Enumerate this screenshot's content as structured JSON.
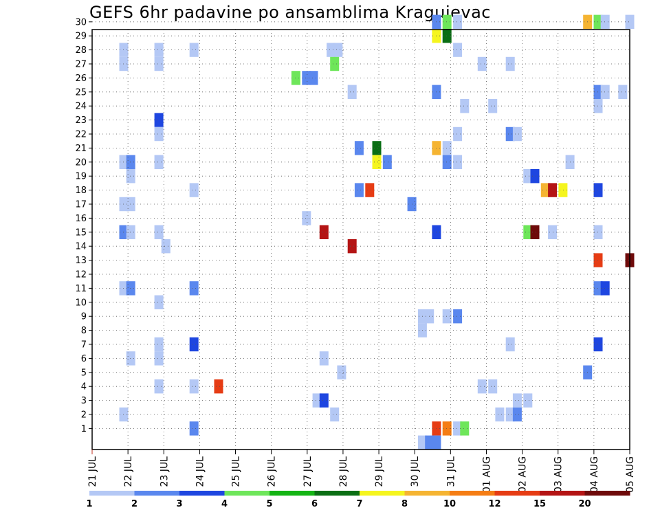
{
  "chart_data": {
    "type": "heatmap",
    "title": "GEFS 6hr padavine po ansamblima Kragujevac",
    "xlabel": "",
    "ylabel": "",
    "y_members": [
      1,
      2,
      3,
      4,
      5,
      6,
      7,
      8,
      9,
      10,
      11,
      12,
      13,
      14,
      15,
      16,
      17,
      18,
      19,
      20,
      21,
      22,
      23,
      24,
      25,
      26,
      27,
      28,
      29,
      30
    ],
    "x_range_days": [
      0,
      15.3
    ],
    "x_ticks": [
      "21 JUL",
      "22 JUL",
      "23 JUL",
      "24 JUL",
      "25 JUL",
      "26 JUL",
      "27 JUL",
      "28 JUL",
      "29 JUL",
      "30 JUL",
      "31 JUL",
      "01 AUG",
      "02 AUG",
      "03 AUG",
      "04 AUG",
      "05 AUG"
    ],
    "grid": true,
    "legend": {
      "placement": "bottom",
      "labels": [
        "1",
        "2",
        "3",
        "4",
        "5",
        "6",
        "7",
        "8",
        "10",
        "12",
        "15",
        "20"
      ],
      "colors": [
        "#b4c8f5",
        "#5a87ee",
        "#1e46e0",
        "#6ee65a",
        "#14b414",
        "#0a6e14",
        "#f5f51e",
        "#f5b432",
        "#f57d14",
        "#e63c14",
        "#b41414",
        "#6e0a0a"
      ]
    },
    "series": [
      {
        "x": 0.9,
        "y": 28,
        "v": 1
      },
      {
        "x": 0.9,
        "y": 27,
        "v": 1
      },
      {
        "x": 1.9,
        "y": 28,
        "v": 1
      },
      {
        "x": 1.9,
        "y": 27,
        "v": 1
      },
      {
        "x": 2.9,
        "y": 28,
        "v": 1
      },
      {
        "x": 1.9,
        "y": 23,
        "v": 3
      },
      {
        "x": 1.9,
        "y": 22,
        "v": 1
      },
      {
        "x": 0.9,
        "y": 20,
        "v": 1
      },
      {
        "x": 1.1,
        "y": 20,
        "v": 2
      },
      {
        "x": 1.1,
        "y": 19,
        "v": 1
      },
      {
        "x": 1.9,
        "y": 20,
        "v": 1
      },
      {
        "x": 0.9,
        "y": 17,
        "v": 1
      },
      {
        "x": 1.1,
        "y": 17,
        "v": 1
      },
      {
        "x": 2.9,
        "y": 18,
        "v": 1
      },
      {
        "x": 0.9,
        "y": 15,
        "v": 2
      },
      {
        "x": 1.1,
        "y": 15,
        "v": 1
      },
      {
        "x": 1.9,
        "y": 15,
        "v": 1
      },
      {
        "x": 2.1,
        "y": 14,
        "v": 1
      },
      {
        "x": 0.9,
        "y": 11,
        "v": 1
      },
      {
        "x": 1.1,
        "y": 11,
        "v": 2
      },
      {
        "x": 2.9,
        "y": 11,
        "v": 2
      },
      {
        "x": 1.9,
        "y": 10,
        "v": 1
      },
      {
        "x": 2.9,
        "y": 7,
        "v": 3
      },
      {
        "x": 1.9,
        "y": 7,
        "v": 1
      },
      {
        "x": 1.1,
        "y": 6,
        "v": 1
      },
      {
        "x": 1.9,
        "y": 6,
        "v": 1
      },
      {
        "x": 1.9,
        "y": 4,
        "v": 1
      },
      {
        "x": 2.9,
        "y": 4,
        "v": 1
      },
      {
        "x": 3.6,
        "y": 4,
        "v": 12
      },
      {
        "x": 0.9,
        "y": 2,
        "v": 1
      },
      {
        "x": 2.9,
        "y": 1,
        "v": 2
      },
      {
        "x": 5.8,
        "y": 26,
        "v": 4
      },
      {
        "x": 6.1,
        "y": 26,
        "v": 2
      },
      {
        "x": 6.3,
        "y": 26,
        "v": 2
      },
      {
        "x": 6.8,
        "y": 28,
        "v": 1
      },
      {
        "x": 7.0,
        "y": 28,
        "v": 1
      },
      {
        "x": 6.9,
        "y": 27,
        "v": 4
      },
      {
        "x": 7.4,
        "y": 25,
        "v": 1
      },
      {
        "x": 7.6,
        "y": 21,
        "v": 2
      },
      {
        "x": 7.6,
        "y": 18,
        "v": 2
      },
      {
        "x": 7.9,
        "y": 18,
        "v": 12
      },
      {
        "x": 6.1,
        "y": 16,
        "v": 1
      },
      {
        "x": 6.6,
        "y": 15,
        "v": 15
      },
      {
        "x": 7.4,
        "y": 14,
        "v": 15
      },
      {
        "x": 6.6,
        "y": 6,
        "v": 1
      },
      {
        "x": 7.1,
        "y": 5,
        "v": 1
      },
      {
        "x": 6.4,
        "y": 3,
        "v": 1
      },
      {
        "x": 6.6,
        "y": 3,
        "v": 3
      },
      {
        "x": 6.9,
        "y": 2,
        "v": 1
      },
      {
        "x": 8.1,
        "y": 21,
        "v": 6
      },
      {
        "x": 8.1,
        "y": 20,
        "v": 7
      },
      {
        "x": 8.4,
        "y": 20,
        "v": 2
      },
      {
        "x": 9.1,
        "y": 17,
        "v": 2
      },
      {
        "x": 9.8,
        "y": 30,
        "v": 2
      },
      {
        "x": 10.1,
        "y": 30,
        "v": 4
      },
      {
        "x": 10.4,
        "y": 30,
        "v": 1
      },
      {
        "x": 9.8,
        "y": 29,
        "v": 7
      },
      {
        "x": 10.1,
        "y": 29,
        "v": 6
      },
      {
        "x": 10.4,
        "y": 28,
        "v": 1
      },
      {
        "x": 9.8,
        "y": 25,
        "v": 2
      },
      {
        "x": 10.6,
        "y": 24,
        "v": 1
      },
      {
        "x": 10.4,
        "y": 22,
        "v": 1
      },
      {
        "x": 9.8,
        "y": 21,
        "v": 8
      },
      {
        "x": 10.1,
        "y": 21,
        "v": 1
      },
      {
        "x": 10.1,
        "y": 20,
        "v": 2
      },
      {
        "x": 10.4,
        "y": 20,
        "v": 1
      },
      {
        "x": 9.8,
        "y": 15,
        "v": 3
      },
      {
        "x": 9.4,
        "y": 9,
        "v": 1
      },
      {
        "x": 9.6,
        "y": 9,
        "v": 1
      },
      {
        "x": 9.4,
        "y": 8,
        "v": 1
      },
      {
        "x": 10.1,
        "y": 9,
        "v": 1
      },
      {
        "x": 10.4,
        "y": 9,
        "v": 2
      },
      {
        "x": 9.8,
        "y": 1,
        "v": 12
      },
      {
        "x": 10.1,
        "y": 1,
        "v": 10
      },
      {
        "x": 10.4,
        "y": 1,
        "v": 1
      },
      {
        "x": 10.6,
        "y": 1,
        "v": 4
      },
      {
        "x": 9.4,
        "y": 0,
        "v": 1
      },
      {
        "x": 9.6,
        "y": 0,
        "v": 2
      },
      {
        "x": 9.8,
        "y": 0,
        "v": 2
      },
      {
        "x": 11.1,
        "y": 27,
        "v": 1
      },
      {
        "x": 11.9,
        "y": 27,
        "v": 1
      },
      {
        "x": 11.4,
        "y": 24,
        "v": 1
      },
      {
        "x": 11.9,
        "y": 22,
        "v": 2
      },
      {
        "x": 12.1,
        "y": 22,
        "v": 1
      },
      {
        "x": 12.4,
        "y": 19,
        "v": 1
      },
      {
        "x": 12.6,
        "y": 19,
        "v": 3
      },
      {
        "x": 12.4,
        "y": 15,
        "v": 4
      },
      {
        "x": 12.6,
        "y": 15,
        "v": 20
      },
      {
        "x": 11.9,
        "y": 7,
        "v": 1
      },
      {
        "x": 11.1,
        "y": 4,
        "v": 1
      },
      {
        "x": 11.4,
        "y": 4,
        "v": 1
      },
      {
        "x": 12.1,
        "y": 3,
        "v": 1
      },
      {
        "x": 12.4,
        "y": 3,
        "v": 1
      },
      {
        "x": 11.6,
        "y": 2,
        "v": 1
      },
      {
        "x": 11.9,
        "y": 2,
        "v": 1
      },
      {
        "x": 12.1,
        "y": 2,
        "v": 2
      },
      {
        "x": 12.9,
        "y": 18,
        "v": 8
      },
      {
        "x": 13.1,
        "y": 18,
        "v": 15
      },
      {
        "x": 13.4,
        "y": 18,
        "v": 7
      },
      {
        "x": 13.1,
        "y": 15,
        "v": 1
      },
      {
        "x": 13.6,
        "y": 20,
        "v": 1
      },
      {
        "x": 14.1,
        "y": 30,
        "v": 8
      },
      {
        "x": 14.4,
        "y": 30,
        "v": 4
      },
      {
        "x": 14.6,
        "y": 30,
        "v": 1
      },
      {
        "x": 15.3,
        "y": 30,
        "v": 1
      },
      {
        "x": 14.4,
        "y": 25,
        "v": 2
      },
      {
        "x": 14.6,
        "y": 25,
        "v": 1
      },
      {
        "x": 15.1,
        "y": 25,
        "v": 1
      },
      {
        "x": 14.4,
        "y": 24,
        "v": 1
      },
      {
        "x": 14.4,
        "y": 18,
        "v": 3
      },
      {
        "x": 14.4,
        "y": 15,
        "v": 1
      },
      {
        "x": 14.4,
        "y": 13,
        "v": 12
      },
      {
        "x": 15.3,
        "y": 13,
        "v": 20
      },
      {
        "x": 14.4,
        "y": 11,
        "v": 2
      },
      {
        "x": 14.6,
        "y": 11,
        "v": 3
      },
      {
        "x": 14.4,
        "y": 7,
        "v": 3
      },
      {
        "x": 14.1,
        "y": 5,
        "v": 2
      }
    ]
  }
}
